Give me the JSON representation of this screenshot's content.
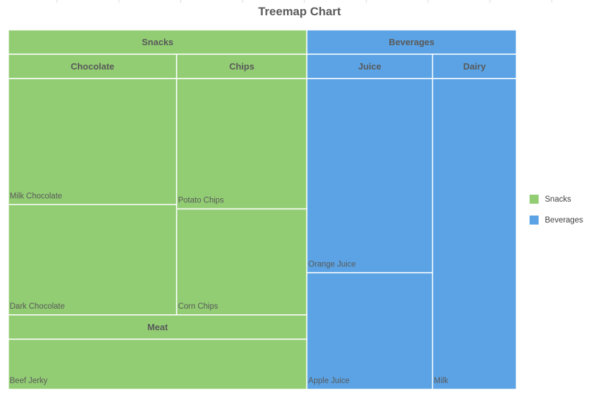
{
  "chart_data": {
    "type": "treemap",
    "title": "Treemap Chart",
    "colors": {
      "Snacks": "#92cd74",
      "Beverages": "#5ba3e4"
    },
    "legend": {
      "position": "right",
      "entries": [
        "Snacks",
        "Beverages"
      ]
    },
    "tree": [
      {
        "name": "Snacks",
        "children": [
          {
            "name": "Chocolate",
            "children": [
              {
                "name": "Milk Chocolate",
                "value": 40
              },
              {
                "name": "Dark Chocolate",
                "value": 35
              }
            ]
          },
          {
            "name": "Chips",
            "children": [
              {
                "name": "Potato Chips",
                "value": 32
              },
              {
                "name": "Corn Chips",
                "value": 26
              }
            ]
          },
          {
            "name": "Meat",
            "children": [
              {
                "name": "Beef Jerky",
                "value": 38
              }
            ]
          }
        ]
      },
      {
        "name": "Beverages",
        "children": [
          {
            "name": "Juice",
            "children": [
              {
                "name": "Orange Juice",
                "value": 45
              },
              {
                "name": "Apple Juice",
                "value": 27
              }
            ]
          },
          {
            "name": "Dairy",
            "children": [
              {
                "name": "Milk",
                "value": 48
              }
            ]
          }
        ]
      }
    ]
  }
}
